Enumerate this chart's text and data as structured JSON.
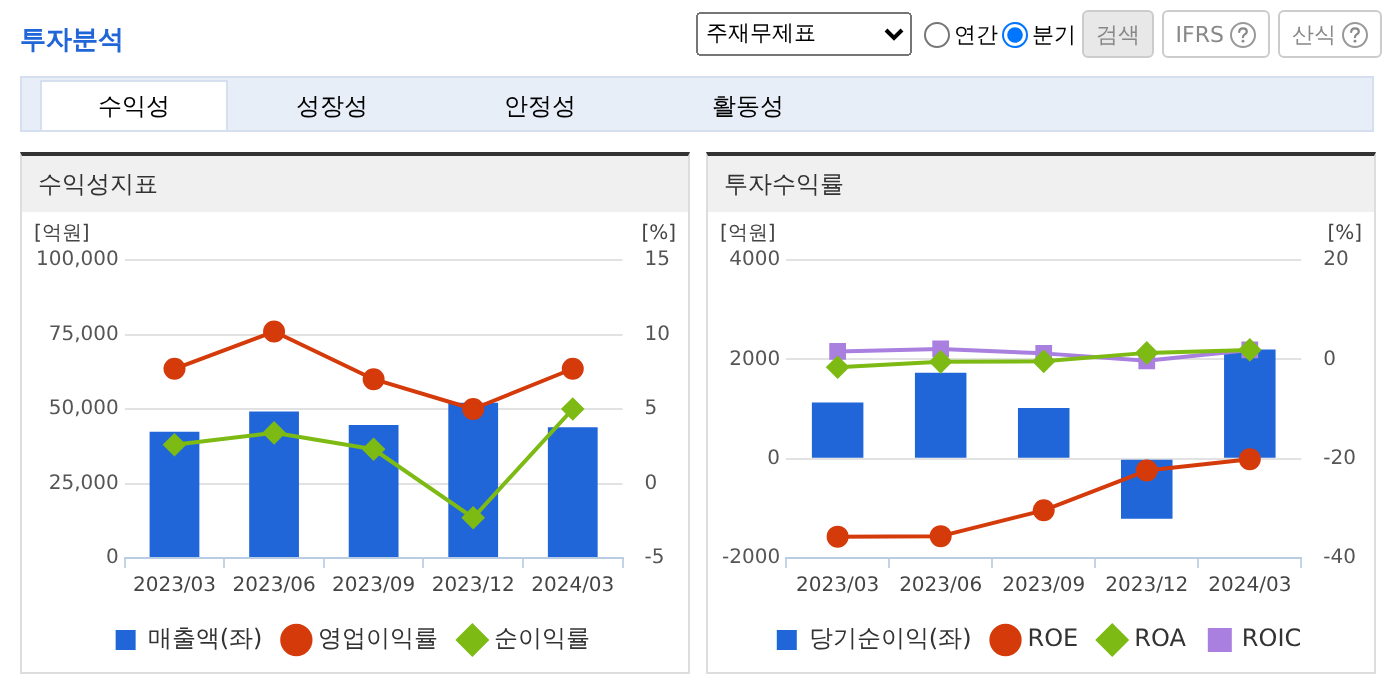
{
  "chart_data": [
    {
      "type": "other",
      "title": "투자분석",
      "annotations": [
        "주재무제표",
        "연간",
        "분기",
        "검색",
        "IFRS",
        "산식",
        "수익성",
        "성장성",
        "안정성",
        "활동성"
      ]
    },
    {
      "type": "bar",
      "title": "수익성지표",
      "ylabel": "[억원]",
      "y2label": "[%]",
      "categories": [
        "2023/03",
        "2023/06",
        "2023/09",
        "2023/12",
        "2024/03"
      ],
      "series": [
        {
          "name": "매출액(좌)",
          "type": "bar",
          "color": "#2166d9",
          "values": [
            42400,
            49200,
            44600,
            52100,
            43900
          ]
        },
        {
          "name": "영업이익률",
          "type": "line",
          "axis": "y2",
          "marker": "circle",
          "color": "#d43a0a",
          "values": [
            7.7,
            10.2,
            7.0,
            5.0,
            7.7
          ]
        },
        {
          "name": "순이익률",
          "type": "line",
          "axis": "y2",
          "marker": "diamond",
          "color": "#7dba13",
          "values": [
            2.6,
            3.4,
            2.3,
            -2.3,
            5.0
          ]
        }
      ],
      "ylim": [
        0,
        100000
      ],
      "yticks": [
        0,
        {
          "value": 25000,
          "label": "25,000"
        },
        {
          "value": 50000,
          "label": "50,000"
        },
        {
          "value": 75000,
          "label": "75,000"
        },
        {
          "value": 100000,
          "label": "100,000"
        }
      ],
      "y2lim": [
        -5,
        15
      ],
      "y2ticks": [
        -5,
        0,
        5,
        10,
        15
      ],
      "grid": "y",
      "legend": "bottom"
    },
    {
      "type": "bar",
      "title": "투자수익률",
      "ylabel": "[억원]",
      "y2label": "[%]",
      "categories": [
        "2023/03",
        "2023/06",
        "2023/09",
        "2023/12",
        "2024/03"
      ],
      "series": [
        {
          "name": "당기순이익(좌)",
          "type": "bar",
          "color": "#2166d9",
          "values": [
            1130,
            1730,
            1020,
            -1210,
            2200
          ]
        },
        {
          "name": "ROE",
          "type": "line",
          "axis": "y2",
          "marker": "circle",
          "color": "#d43a0a",
          "values": [
            -35.7,
            -35.6,
            -30.4,
            -22.4,
            -20.1
          ]
        },
        {
          "name": "ROA",
          "type": "line",
          "axis": "y2",
          "marker": "diamond",
          "color": "#7dba13",
          "values": [
            -1.6,
            -0.5,
            -0.4,
            1.3,
            1.9
          ]
        },
        {
          "name": "ROIC",
          "type": "line",
          "axis": "y2",
          "marker": "square",
          "color": "#a97fe0",
          "values": [
            1.6,
            2.1,
            1.2,
            -0.3,
            1.9
          ]
        }
      ],
      "ylim": [
        -2000,
        4000
      ],
      "yticks": [
        -2000,
        0,
        2000,
        4000
      ],
      "y2lim": [
        -40,
        20
      ],
      "y2ticks": [
        -40,
        -20,
        0,
        20
      ],
      "grid": "y",
      "legend": "bottom"
    }
  ]
}
